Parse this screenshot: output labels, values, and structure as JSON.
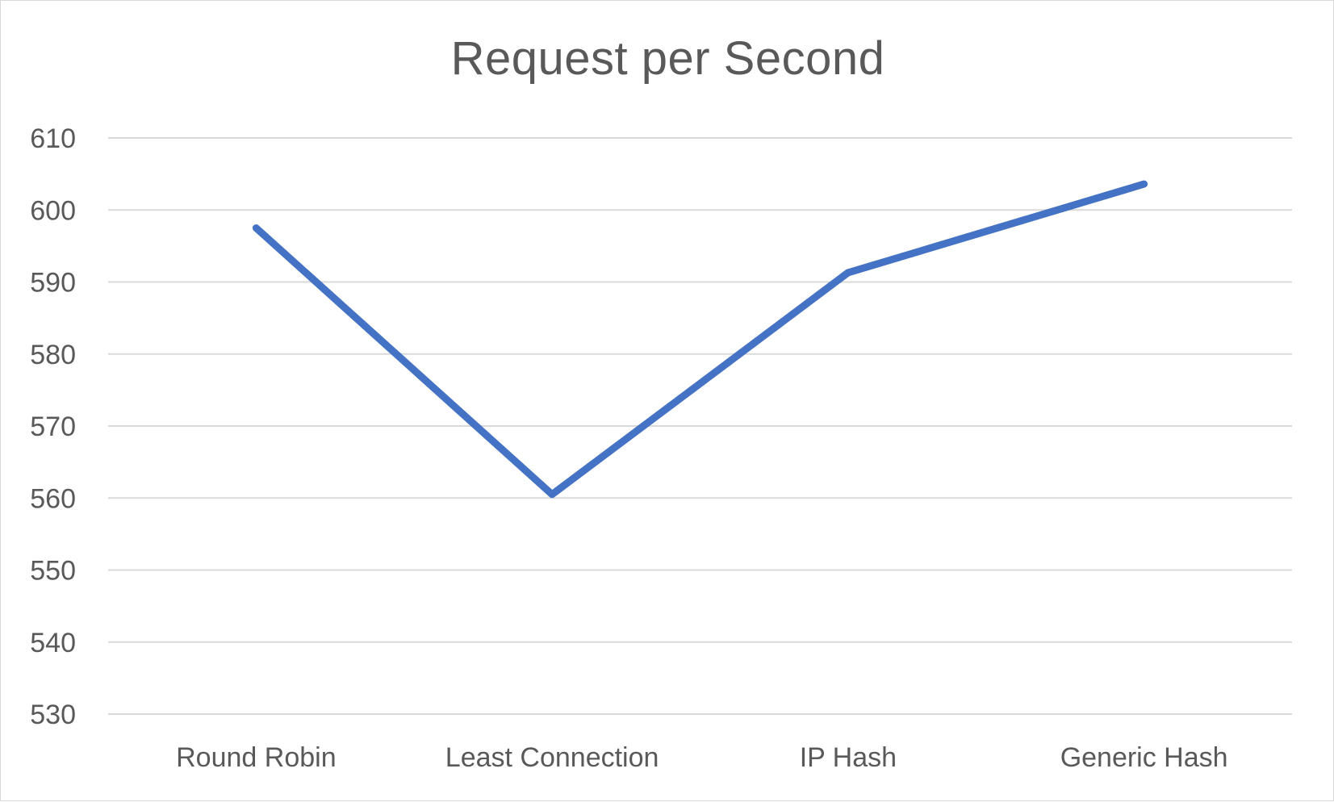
{
  "chart_data": {
    "type": "line",
    "title": "Request per Second",
    "xlabel": "",
    "ylabel": "",
    "categories": [
      "Round Robin",
      "Least Connection",
      "IP Hash",
      "Generic Hash"
    ],
    "series": [
      {
        "values": [
          597.5,
          560.5,
          591.3,
          603.6
        ],
        "color": "#4472C4"
      }
    ],
    "ylim": [
      530,
      610
    ],
    "yticks": [
      530,
      540,
      550,
      560,
      570,
      580,
      590,
      600,
      610
    ],
    "grid": true,
    "legend": "none",
    "colors": {
      "gridline": "#d9d9d9",
      "text": "#595959",
      "line": "#4472C4"
    }
  }
}
